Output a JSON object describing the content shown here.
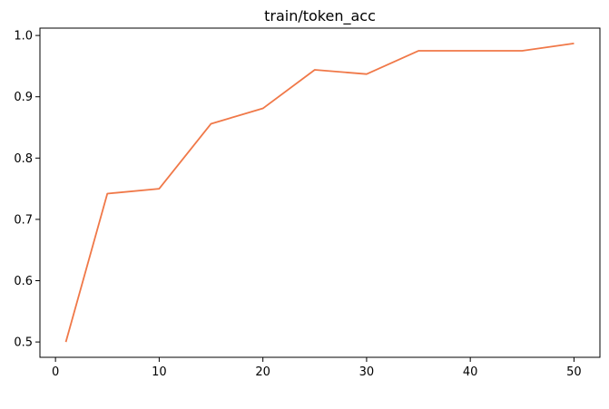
{
  "chart_data": {
    "type": "line",
    "title": "train/token_acc",
    "xlabel": "",
    "ylabel": "",
    "xlim": [
      -1.5,
      52.5
    ],
    "ylim": [
      0.475,
      1.012
    ],
    "xticks": [
      0,
      10,
      20,
      30,
      40,
      50
    ],
    "yticks": [
      0.5,
      0.6,
      0.7,
      0.8,
      0.9,
      1.0
    ],
    "xtick_labels": [
      "0",
      "10",
      "20",
      "30",
      "40",
      "50"
    ],
    "ytick_labels": [
      "0.5",
      "0.6",
      "0.7",
      "0.8",
      "0.9",
      "1.0"
    ],
    "grid": false,
    "legend": "none",
    "series": [
      {
        "color": "#f07848",
        "x": [
          1,
          5,
          10,
          15,
          20,
          25,
          30,
          35,
          40,
          45,
          50
        ],
        "y": [
          0.5,
          0.742,
          0.75,
          0.856,
          0.881,
          0.944,
          0.937,
          0.975,
          0.975,
          0.975,
          0.987
        ]
      }
    ]
  }
}
